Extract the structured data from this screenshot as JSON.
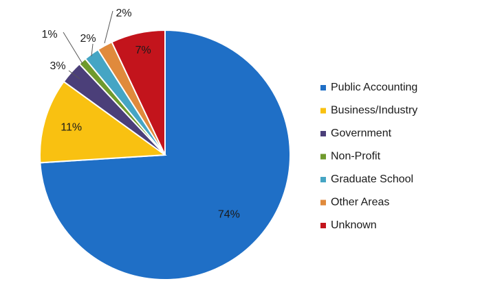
{
  "chart_data": {
    "type": "pie",
    "title": "",
    "start_angle_deg": 0,
    "direction": "clockwise",
    "legend_position": "right",
    "slices": [
      {
        "label": "Public Accounting",
        "value": 74,
        "value_label": "74%",
        "color": "#1f6fc6"
      },
      {
        "label": "Business/Industry",
        "value": 11,
        "value_label": "11%",
        "color": "#f9c111"
      },
      {
        "label": "Government",
        "value": 3,
        "value_label": "3%",
        "color": "#4b3f79"
      },
      {
        "label": "Non-Profit",
        "value": 1,
        "value_label": "1%",
        "color": "#6f9a2d"
      },
      {
        "label": "Graduate School",
        "value": 2,
        "value_label": "2%",
        "color": "#45a5c4"
      },
      {
        "label": "Other Areas",
        "value": 2,
        "value_label": "2%",
        "color": "#e08a3c"
      },
      {
        "label": "Unknown",
        "value": 7,
        "value_label": "7%",
        "color": "#c3141c"
      }
    ]
  }
}
